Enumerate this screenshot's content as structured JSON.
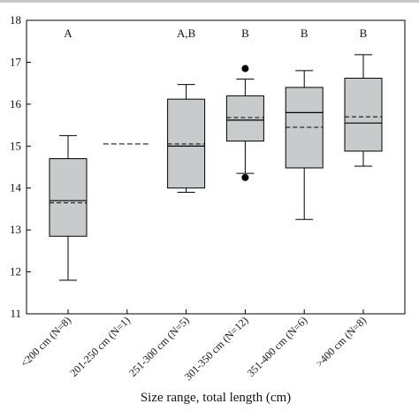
{
  "chart_data": {
    "type": "box",
    "xlabel": "Size range, total length (cm)",
    "ylabel": "",
    "ylim": [
      11,
      18
    ],
    "yticks": [
      11,
      12,
      13,
      14,
      15,
      16,
      17,
      18
    ],
    "grid": false,
    "categories": [
      "<200 cm (N=8)",
      "201-250 cm (N=1)",
      "251-300 cm (N=5)",
      "301-350 cm (N=12)",
      "351-400 cm (N=6)",
      ">400 cm (N=8)"
    ],
    "group_letters": [
      "A",
      "",
      "A,B",
      "B",
      "B",
      "B"
    ],
    "box_fill": "#c7cbcb",
    "boxes": [
      {
        "min": 11.8,
        "q1": 12.85,
        "median": 13.7,
        "mean": 13.65,
        "q3": 14.7,
        "max": 15.25,
        "outliers": []
      },
      {
        "single_value": 15.05
      },
      {
        "min": 13.9,
        "q1": 14.0,
        "median": 15.0,
        "mean": 15.05,
        "q3": 16.12,
        "max": 16.47,
        "outliers": []
      },
      {
        "min": 14.35,
        "q1": 15.12,
        "median": 15.62,
        "mean": 15.68,
        "q3": 16.2,
        "max": 16.6,
        "outliers": [
          14.25,
          16.85
        ]
      },
      {
        "min": 13.25,
        "q1": 14.48,
        "median": 15.8,
        "mean": 15.45,
        "q3": 16.4,
        "max": 16.8,
        "outliers": []
      },
      {
        "min": 14.52,
        "q1": 14.88,
        "median": 15.55,
        "mean": 15.7,
        "q3": 16.62,
        "max": 17.18,
        "outliers": []
      }
    ]
  }
}
